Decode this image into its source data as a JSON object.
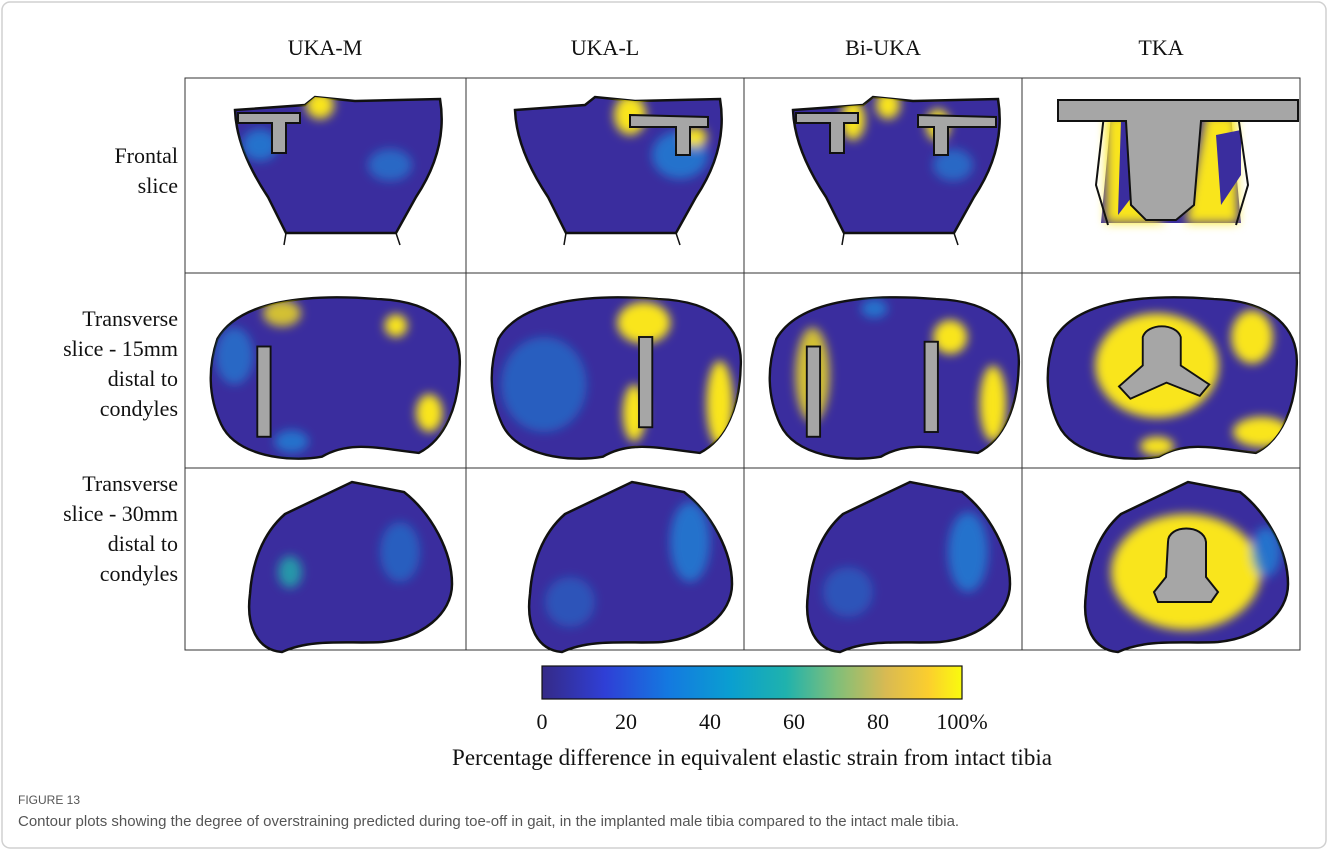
{
  "figure": {
    "column_headers": [
      "UKA-M",
      "UKA-L",
      "Bi-UKA",
      "TKA"
    ],
    "row_labels": [
      [
        "Frontal",
        "slice"
      ],
      [
        "Transverse",
        "slice - 15mm",
        "distal to",
        "condyles"
      ],
      [
        "Transverse",
        "slice - 30mm",
        "distal to",
        "condyles"
      ]
    ],
    "colorbar": {
      "range": [
        0,
        100
      ],
      "ticks": [
        0,
        20,
        40,
        60,
        80,
        {
          "value": 100,
          "label": "100%"
        }
      ],
      "label": "Percentage difference in equivalent elastic strain from intact tibia"
    },
    "figure_label": "FIGURE 13",
    "caption": "Contour plots showing the degree of overstraining predicted during toe-off in gait, in the implanted male tibia compared to the intact male tibia."
  }
}
